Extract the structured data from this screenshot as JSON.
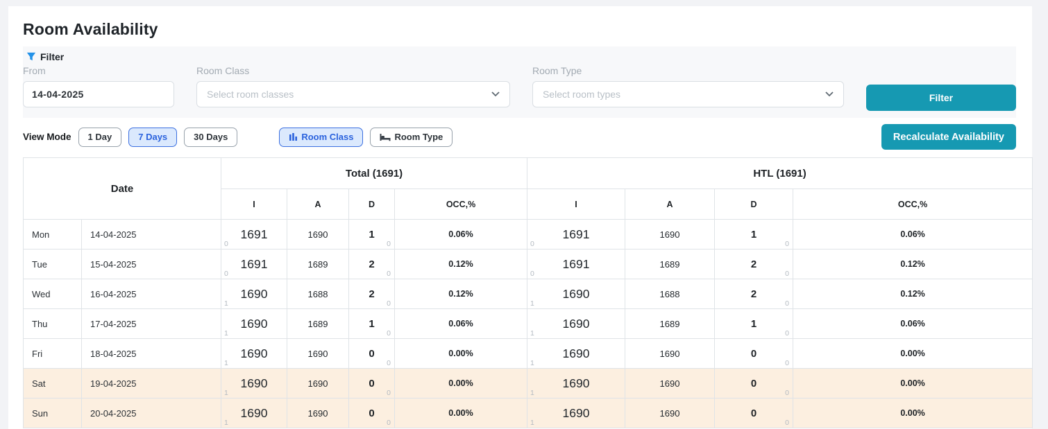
{
  "page": {
    "title": "Room Availability"
  },
  "filter": {
    "section_label": "Filter",
    "from_label": "From",
    "from_value": "14-04-2025",
    "room_class_label": "Room Class",
    "room_class_placeholder": "Select room classes",
    "room_type_label": "Room Type",
    "room_type_placeholder": "Select room types",
    "filter_button_label": "Filter"
  },
  "toolbar": {
    "view_mode_label": "View Mode",
    "view_modes": [
      {
        "label": "1 Day",
        "active": false
      },
      {
        "label": "7 Days",
        "active": true
      },
      {
        "label": "30 Days",
        "active": false
      }
    ],
    "group_toggles": [
      {
        "label": "Room Class",
        "icon": "bar-chart-icon",
        "active": true
      },
      {
        "label": "Room Type",
        "icon": "bed-icon",
        "active": false
      }
    ],
    "recalculate_button_label": "Recalculate Availability"
  },
  "table": {
    "date_header": "Date",
    "groups": [
      "Total (1691)",
      "HTL (1691)"
    ],
    "sub_headers": [
      "I",
      "A",
      "D",
      "OCC,%"
    ],
    "rows": [
      {
        "day": "Mon",
        "date": "14-04-2025",
        "weekend": false,
        "total": {
          "i": "1691",
          "i_sub": "0",
          "a": "1690",
          "d": "1",
          "d_sub": "0",
          "occ": "0.06%"
        },
        "htl": {
          "i": "1691",
          "i_sub": "0",
          "a": "1690",
          "d": "1",
          "d_sub": "0",
          "occ": "0.06%"
        }
      },
      {
        "day": "Tue",
        "date": "15-04-2025",
        "weekend": false,
        "total": {
          "i": "1691",
          "i_sub": "0",
          "a": "1689",
          "d": "2",
          "d_sub": "0",
          "occ": "0.12%"
        },
        "htl": {
          "i": "1691",
          "i_sub": "0",
          "a": "1689",
          "d": "2",
          "d_sub": "0",
          "occ": "0.12%"
        }
      },
      {
        "day": "Wed",
        "date": "16-04-2025",
        "weekend": false,
        "total": {
          "i": "1690",
          "i_sub": "1",
          "a": "1688",
          "d": "2",
          "d_sub": "0",
          "occ": "0.12%"
        },
        "htl": {
          "i": "1690",
          "i_sub": "1",
          "a": "1688",
          "d": "2",
          "d_sub": "0",
          "occ": "0.12%"
        }
      },
      {
        "day": "Thu",
        "date": "17-04-2025",
        "weekend": false,
        "total": {
          "i": "1690",
          "i_sub": "1",
          "a": "1689",
          "d": "1",
          "d_sub": "0",
          "occ": "0.06%"
        },
        "htl": {
          "i": "1690",
          "i_sub": "1",
          "a": "1689",
          "d": "1",
          "d_sub": "0",
          "occ": "0.06%"
        }
      },
      {
        "day": "Fri",
        "date": "18-04-2025",
        "weekend": false,
        "total": {
          "i": "1690",
          "i_sub": "1",
          "a": "1690",
          "d": "0",
          "d_sub": "0",
          "occ": "0.00%"
        },
        "htl": {
          "i": "1690",
          "i_sub": "1",
          "a": "1690",
          "d": "0",
          "d_sub": "0",
          "occ": "0.00%"
        }
      },
      {
        "day": "Sat",
        "date": "19-04-2025",
        "weekend": true,
        "total": {
          "i": "1690",
          "i_sub": "1",
          "a": "1690",
          "d": "0",
          "d_sub": "0",
          "occ": "0.00%"
        },
        "htl": {
          "i": "1690",
          "i_sub": "1",
          "a": "1690",
          "d": "0",
          "d_sub": "0",
          "occ": "0.00%"
        }
      },
      {
        "day": "Sun",
        "date": "20-04-2025",
        "weekend": true,
        "total": {
          "i": "1690",
          "i_sub": "1",
          "a": "1690",
          "d": "0",
          "d_sub": "0",
          "occ": "0.00%"
        },
        "htl": {
          "i": "1690",
          "i_sub": "1",
          "a": "1690",
          "d": "0",
          "d_sub": "0",
          "occ": "0.00%"
        }
      }
    ]
  },
  "colors": {
    "accent_teal": "#1699b2",
    "accent_blue": "#2a62dd",
    "active_pill_bg": "#dbe9fd",
    "weekend_row_bg": "#fcefe0",
    "filter_icon_blue": "#2492e8"
  }
}
